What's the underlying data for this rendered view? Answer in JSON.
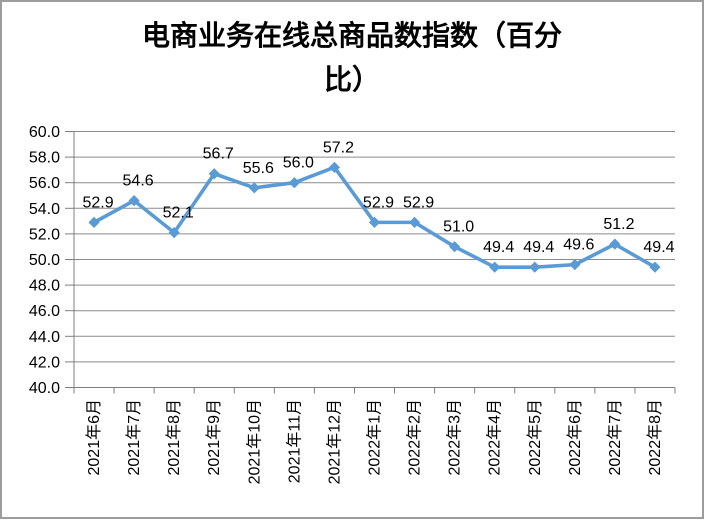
{
  "header": {
    "title_line1": "电商业务在线总商品数指数（百分",
    "title_line2": "比）"
  },
  "chart_data": {
    "type": "line",
    "title": "电商业务在线总商品数指数（百分比）",
    "categories": [
      "2021年6月",
      "2021年7月",
      "2021年8月",
      "2021年9月",
      "2021年10月",
      "2021年11月",
      "2021年12月",
      "2022年1月",
      "2022年2月",
      "2022年3月",
      "2022年4月",
      "2022年5月",
      "2022年6月",
      "2022年7月",
      "2022年8月"
    ],
    "values": [
      52.9,
      54.6,
      52.1,
      56.7,
      55.6,
      56.0,
      57.2,
      52.9,
      52.9,
      51.0,
      49.4,
      49.4,
      49.6,
      51.2,
      49.4
    ],
    "data_labels": [
      "52.9",
      "54.6",
      "52.1",
      "56.7",
      "55.6",
      "56.0",
      "57.2",
      "52.9",
      "52.9",
      "51.0",
      "49.4",
      "49.4",
      "49.6",
      "51.2",
      "49.4"
    ],
    "xlabel": "",
    "ylabel": "",
    "ylim": [
      40.0,
      60.0
    ],
    "ytick_step": 2.0,
    "ytick_labels": [
      "60.0",
      "58.0",
      "56.0",
      "54.0",
      "52.0",
      "50.0",
      "48.0",
      "46.0",
      "44.0",
      "42.0",
      "40.0"
    ],
    "grid": true,
    "legend": "none",
    "marker": "diamond",
    "colors": {
      "series": "#5B9BD5",
      "gridline": "#8c8c8c",
      "axis": "#7f7f7f",
      "text": "#000000",
      "frame_border": "#9c9c9c"
    }
  }
}
